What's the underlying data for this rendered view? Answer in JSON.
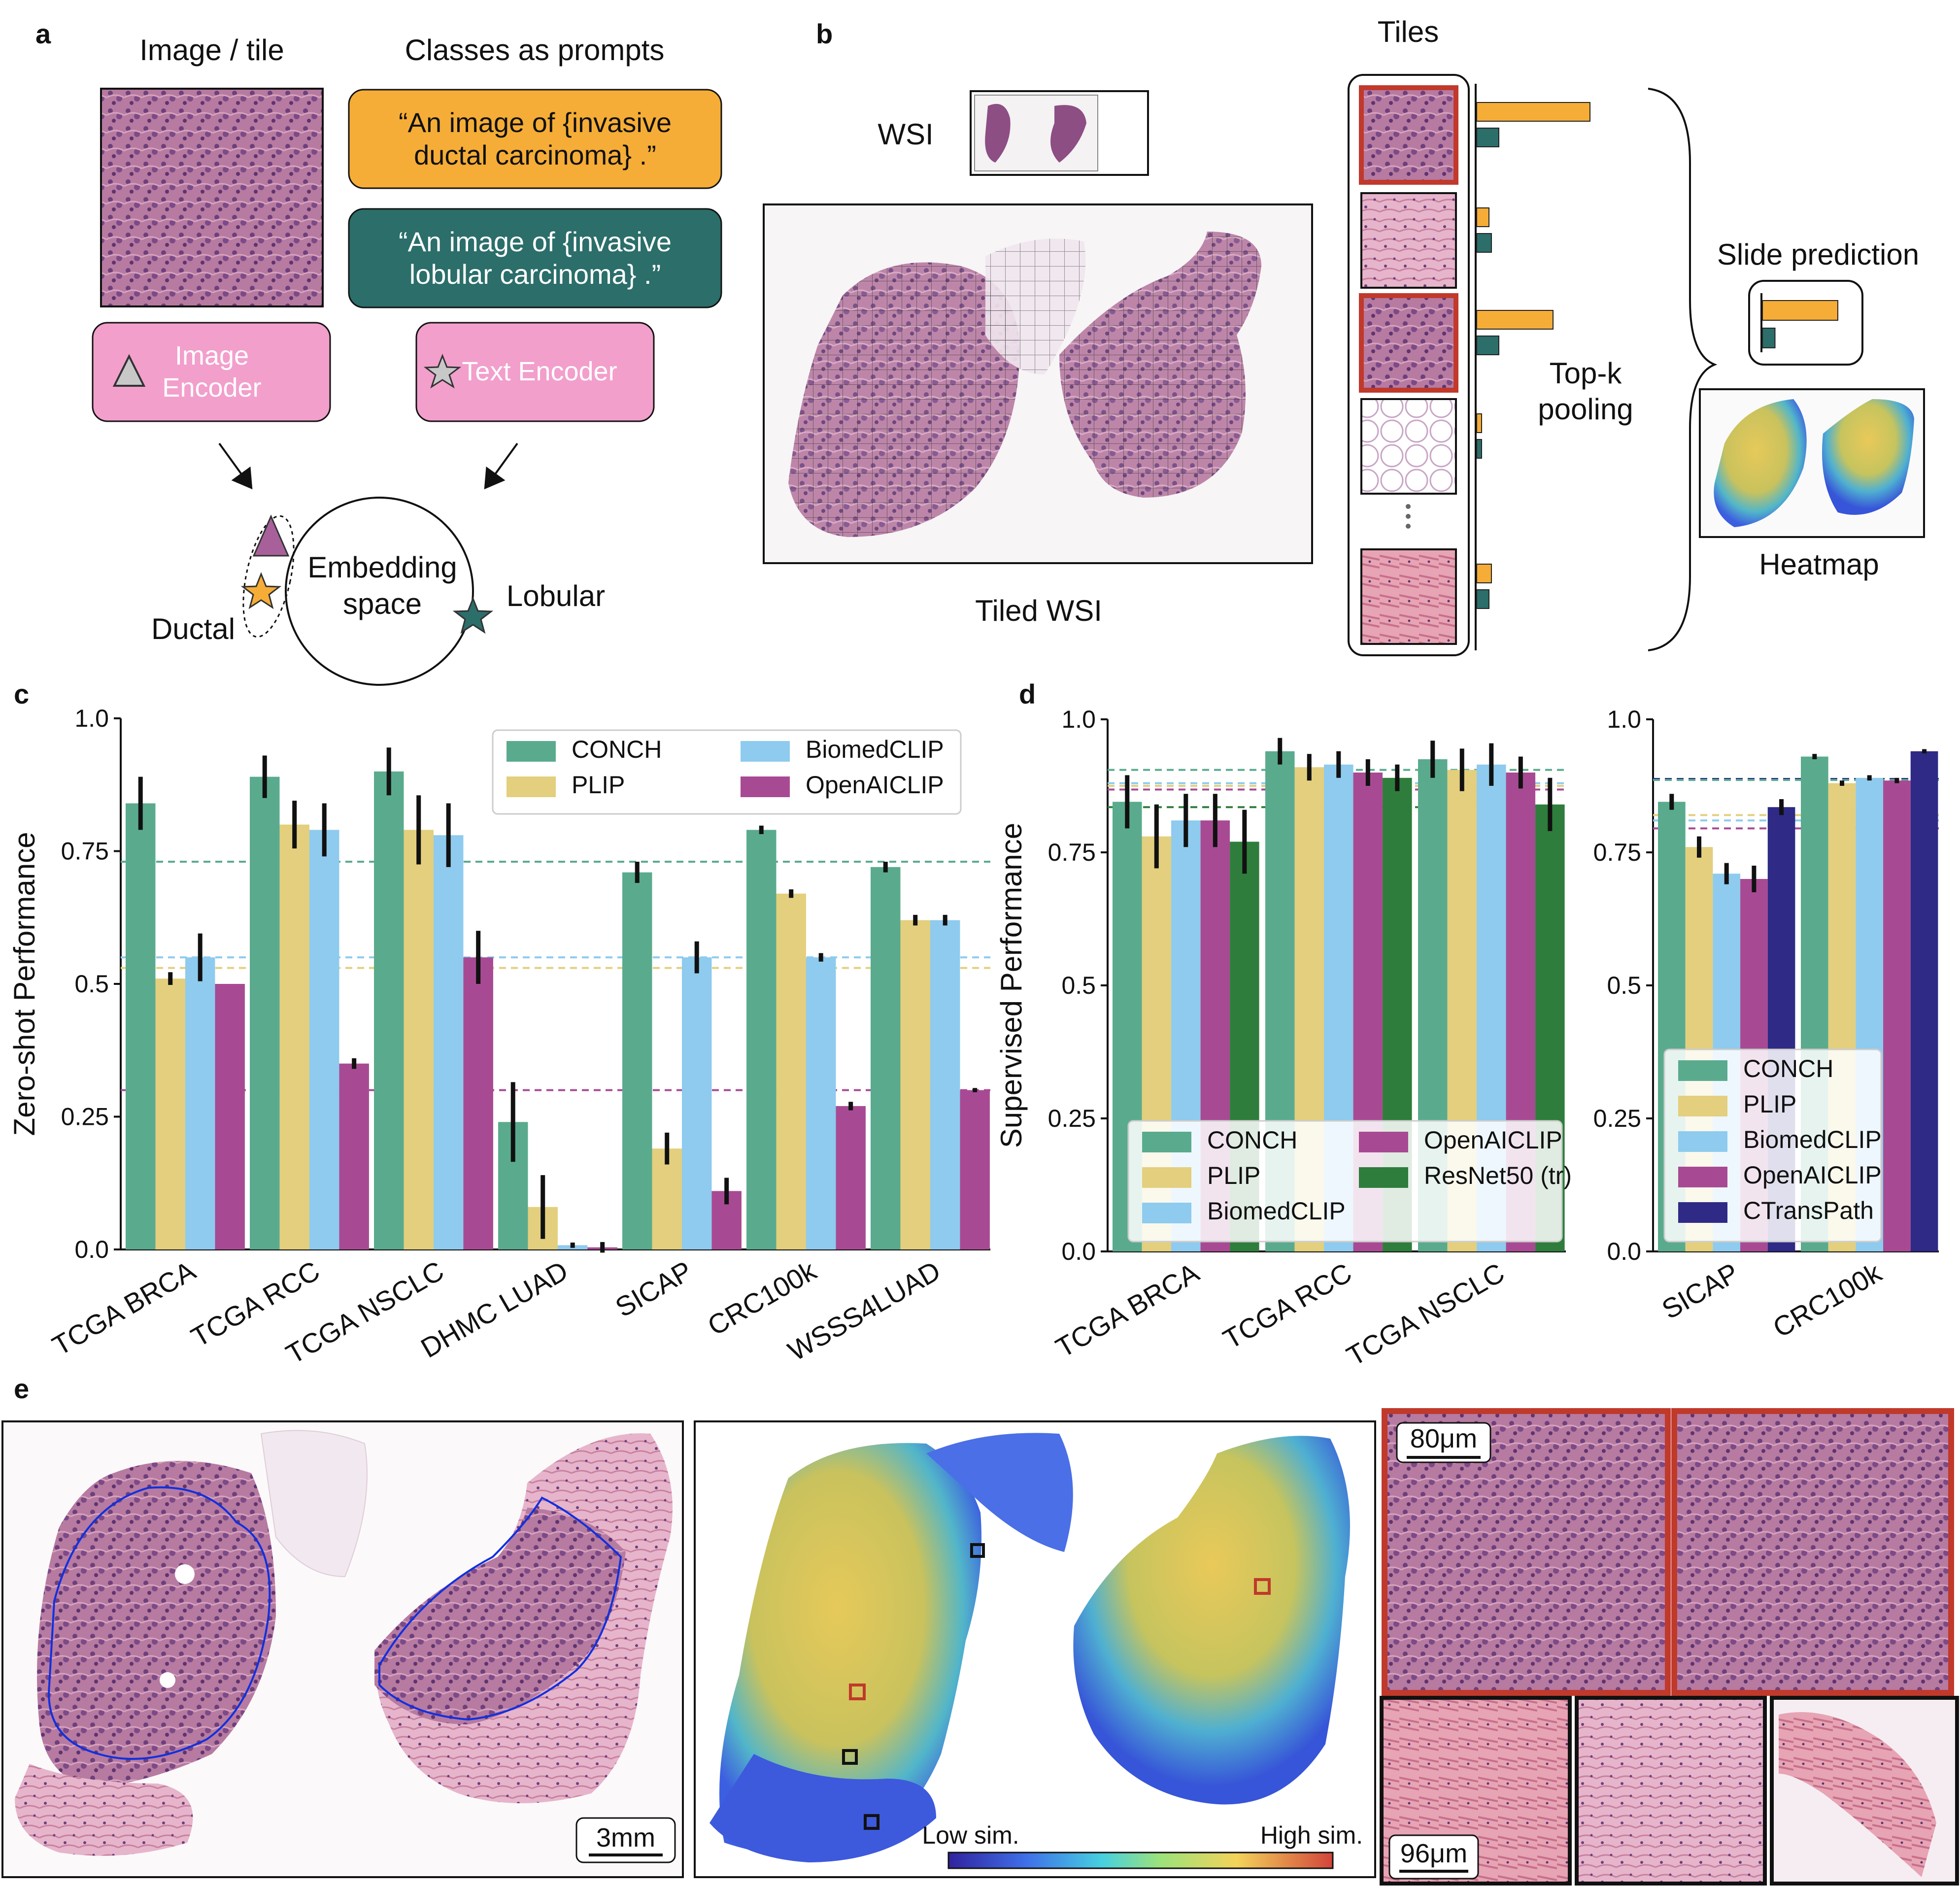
{
  "colors": {
    "CONCH": "#5aab8e",
    "PLIP": "#e3cf7d",
    "BiomedCLIP": "#8ecbee",
    "OpenAICLIP": "#a84a93",
    "ResNet50 (tr)": "#2f7d3c",
    "CTransPath": "#2e2a86",
    "ductal": "#f5ad37",
    "lobular": "#2b6e6a",
    "encoder": "#f29fcc",
    "frame_red": "#c0392b"
  },
  "panel_a": {
    "letter": "a",
    "image_title": "Image / tile",
    "prompts_title": "Classes as prompts",
    "prompt_ductal": [
      "“An image of {invasive",
      "ductal carcinoma} .”"
    ],
    "prompt_lobular": [
      "“An image of {invasive",
      "lobular carcinoma} .”"
    ],
    "image_encoder": [
      "Image",
      "Encoder"
    ],
    "text_encoder": "Text Encoder",
    "embedding": [
      "Embedding",
      "space"
    ],
    "ductal_label": "Ductal",
    "lobular_label": "Lobular",
    "icons": [
      "triangle-icon",
      "star-icon"
    ]
  },
  "panel_b": {
    "letter": "b",
    "wsi_label": "WSI",
    "tiled_label": "Tiled WSI",
    "tiles_label": "Tiles",
    "pooling_label": [
      "Top-k",
      "pooling"
    ],
    "slide_prediction": "Slide prediction",
    "heatmap_label": "Heatmap",
    "tile_scores": [
      {
        "ductal": 0.92,
        "lobular": 0.18,
        "selected": true
      },
      {
        "ductal": 0.1,
        "lobular": 0.12,
        "selected": false
      },
      {
        "ductal": 0.62,
        "lobular": 0.18,
        "selected": true
      },
      {
        "ductal": 0.04,
        "lobular": 0.04,
        "selected": false
      },
      {
        "ductal": 0.12,
        "lobular": 0.1,
        "selected": false
      }
    ],
    "slide_scores": {
      "ductal": 0.9,
      "lobular": 0.15
    }
  },
  "chart_data": [
    {
      "id": "c",
      "letter": "c",
      "type": "bar",
      "ylabel": "Zero-shot Performance",
      "ylim": [
        0,
        1
      ],
      "yticks": [
        "0.0",
        "0.25",
        "0.5",
        "0.75",
        "1.0"
      ],
      "categories": [
        "TCGA BRCA",
        "TCGA RCC",
        "TCGA NSCLC",
        "DHMC LUAD",
        "SICAP",
        "CRC100k",
        "WSSS4LUAD"
      ],
      "series": [
        {
          "name": "CONCH",
          "values": [
            0.84,
            0.89,
            0.9,
            0.24,
            0.71,
            0.79,
            0.72
          ],
          "err": [
            0.05,
            0.04,
            0.045,
            0.075,
            0.02,
            0.008,
            0.01
          ]
        },
        {
          "name": "PLIP",
          "values": [
            0.51,
            0.8,
            0.79,
            0.08,
            0.19,
            0.67,
            0.62
          ],
          "err": [
            0.012,
            0.045,
            0.065,
            0.06,
            0.03,
            0.008,
            0.01
          ]
        },
        {
          "name": "BiomedCLIP",
          "values": [
            0.55,
            0.79,
            0.78,
            0.008,
            0.55,
            0.55,
            0.62
          ],
          "err": [
            0.045,
            0.05,
            0.06,
            0.005,
            0.03,
            0.008,
            0.01
          ]
        },
        {
          "name": "OpenAICLIP",
          "values": [
            0.5,
            0.35,
            0.55,
            0.004,
            0.11,
            0.27,
            0.3
          ],
          "err": [
            0.0,
            0.01,
            0.05,
            0.01,
            0.025,
            0.008,
            0.004
          ]
        }
      ],
      "hlines": [
        {
          "series": "CONCH",
          "value": 0.73
        },
        {
          "series": "BiomedCLIP",
          "value": 0.55
        },
        {
          "series": "PLIP",
          "value": 0.53
        },
        {
          "series": "OpenAICLIP",
          "value": 0.3
        }
      ],
      "legend": "top-right",
      "legend_cols": [
        [
          "CONCH",
          "PLIP"
        ],
        [
          "BiomedCLIP",
          "OpenAICLIP"
        ]
      ]
    },
    {
      "id": "d1",
      "letter": "d",
      "type": "bar",
      "ylabel": "Supervised Performance",
      "ylim": [
        0,
        1
      ],
      "yticks": [
        "0.0",
        "0.25",
        "0.5",
        "0.75",
        "1.0"
      ],
      "categories": [
        "TCGA BRCA",
        "TCGA RCC",
        "TCGA NSCLC"
      ],
      "series": [
        {
          "name": "CONCH",
          "values": [
            0.845,
            0.94,
            0.925
          ],
          "err": [
            0.05,
            0.025,
            0.035
          ]
        },
        {
          "name": "PLIP",
          "values": [
            0.78,
            0.91,
            0.905
          ],
          "err": [
            0.06,
            0.025,
            0.04
          ]
        },
        {
          "name": "BiomedCLIP",
          "values": [
            0.81,
            0.915,
            0.915
          ],
          "err": [
            0.05,
            0.025,
            0.04
          ]
        },
        {
          "name": "OpenAICLIP",
          "values": [
            0.81,
            0.9,
            0.9
          ],
          "err": [
            0.05,
            0.025,
            0.03
          ]
        },
        {
          "name": "ResNet50 (tr)",
          "values": [
            0.77,
            0.89,
            0.84
          ],
          "err": [
            0.06,
            0.025,
            0.05
          ]
        }
      ],
      "hlines": [
        {
          "series": "CONCH",
          "value": 0.905
        },
        {
          "series": "BiomedCLIP",
          "value": 0.88
        },
        {
          "series": "PLIP",
          "value": 0.875
        },
        {
          "series": "OpenAICLIP",
          "value": 0.868
        },
        {
          "series": "ResNet50 (tr)",
          "value": 0.835
        }
      ],
      "legend": "lower-center",
      "legend_cols": [
        [
          "CONCH",
          "PLIP",
          "BiomedCLIP"
        ],
        [
          "OpenAICLIP",
          "ResNet50 (tr)"
        ]
      ]
    },
    {
      "id": "d2",
      "type": "bar",
      "ylim": [
        0,
        1
      ],
      "yticks": [
        "0.0",
        "0.25",
        "0.5",
        "0.75",
        "1.0"
      ],
      "categories": [
        "SICAP",
        "CRC100k"
      ],
      "series": [
        {
          "name": "CONCH",
          "values": [
            0.845,
            0.93
          ],
          "err": [
            0.015,
            0.005
          ]
        },
        {
          "name": "PLIP",
          "values": [
            0.76,
            0.88
          ],
          "err": [
            0.02,
            0.005
          ]
        },
        {
          "name": "BiomedCLIP",
          "values": [
            0.71,
            0.89
          ],
          "err": [
            0.02,
            0.005
          ]
        },
        {
          "name": "OpenAICLIP",
          "values": [
            0.7,
            0.885
          ],
          "err": [
            0.025,
            0.005
          ]
        },
        {
          "name": "CTransPath",
          "values": [
            0.835,
            0.94
          ],
          "err": [
            0.015,
            0.004
          ]
        }
      ],
      "hlines": [
        {
          "series": "CTransPath",
          "value": 0.888
        },
        {
          "series": "CONCH",
          "value": 0.886
        },
        {
          "series": "PLIP",
          "value": 0.82
        },
        {
          "series": "BiomedCLIP",
          "value": 0.81
        },
        {
          "series": "OpenAICLIP",
          "value": 0.795
        }
      ],
      "legend": "lower-left",
      "legend_cols": [
        [
          "CONCH",
          "PLIP",
          "BiomedCLIP",
          "OpenAICLIP",
          "CTransPath"
        ]
      ]
    }
  ],
  "panel_e": {
    "letter": "e",
    "scale_wsi": "3mm",
    "scale_tile_top": "80μm",
    "scale_tile_bottom": "96μm",
    "colorbar_low": "Low sim.",
    "colorbar_high": "High sim."
  }
}
